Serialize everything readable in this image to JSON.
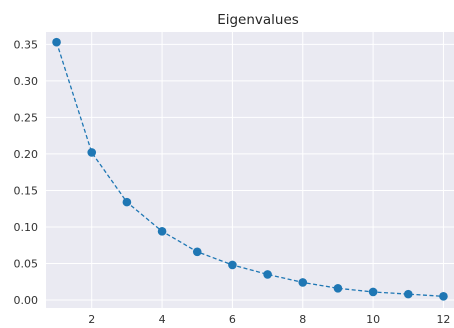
{
  "chart_data": {
    "type": "line",
    "title": "Eigenvalues",
    "xlabel": "",
    "ylabel": "",
    "x": [
      1,
      2,
      3,
      4,
      5,
      6,
      7,
      8,
      9,
      10,
      11,
      12
    ],
    "series": [
      {
        "values": [
          0.353,
          0.202,
          0.134,
          0.094,
          0.066,
          0.048,
          0.035,
          0.024,
          0.016,
          0.011,
          0.008,
          0.005
        ],
        "color": "#1f77b4",
        "line_style": "dashed",
        "marker": "circle"
      }
    ],
    "xlim": [
      0.7,
      12.3
    ],
    "ylim": [
      -0.011,
      0.367
    ],
    "xticks": [
      2,
      4,
      6,
      8,
      10,
      12
    ],
    "yticks": [
      0.0,
      0.05,
      0.1,
      0.15,
      0.2,
      0.25,
      0.3,
      0.35
    ],
    "ytick_labels": [
      "0.00",
      "0.05",
      "0.10",
      "0.15",
      "0.20",
      "0.25",
      "0.30",
      "0.35"
    ],
    "grid": true,
    "background_color": "#eaeaf2",
    "grid_color": "#ffffff"
  }
}
